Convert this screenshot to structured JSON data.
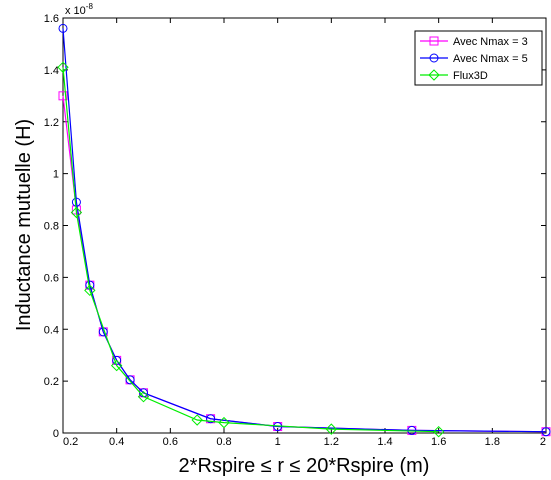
{
  "chart_data": {
    "type": "line",
    "title": "",
    "xlabel": "2*Rspire ≤ r ≤ 20*Rspire (m)",
    "ylabel": "Inductance mutuelle (H)",
    "y_exponent_label": "x 10",
    "y_exponent_power": "-8",
    "xlim": [
      0.2,
      2
    ],
    "ylim": [
      0,
      1.6
    ],
    "x_ticks": [
      "0.2",
      "0.4",
      "0.6",
      "0.8",
      "1",
      "1.2",
      "1.4",
      "1.6",
      "1.8",
      "2"
    ],
    "y_ticks": [
      "0",
      "0.2",
      "0.4",
      "0.6",
      "0.8",
      "1",
      "1.2",
      "1.4",
      "1.6"
    ],
    "grid": false,
    "legend_position": "top-right",
    "series": [
      {
        "name": "Avec Nmax = 3",
        "color": "#ff00ff",
        "marker": "square",
        "x": [
          0.2,
          0.25,
          0.3,
          0.35,
          0.4,
          0.45,
          0.5,
          0.75,
          1.0,
          1.5,
          2.0
        ],
        "y": [
          1.3,
          0.86,
          0.57,
          0.39,
          0.28,
          0.205,
          0.155,
          0.055,
          0.025,
          0.01,
          0.005
        ]
      },
      {
        "name": "Avec Nmax = 5",
        "color": "#0000ff",
        "marker": "circle",
        "x": [
          0.2,
          0.25,
          0.3,
          0.35,
          0.4,
          0.45,
          0.5,
          0.75,
          1.0,
          1.5,
          2.0
        ],
        "y": [
          1.56,
          0.89,
          0.57,
          0.39,
          0.28,
          0.205,
          0.155,
          0.055,
          0.025,
          0.01,
          0.005
        ]
      },
      {
        "name": "Flux3D",
        "color": "#00ee00",
        "marker": "diamond",
        "x": [
          0.2,
          0.25,
          0.3,
          0.4,
          0.5,
          0.7,
          0.8,
          1.2,
          1.6
        ],
        "y": [
          1.41,
          0.85,
          0.55,
          0.26,
          0.14,
          0.05,
          0.04,
          0.015,
          0.005
        ]
      }
    ]
  }
}
